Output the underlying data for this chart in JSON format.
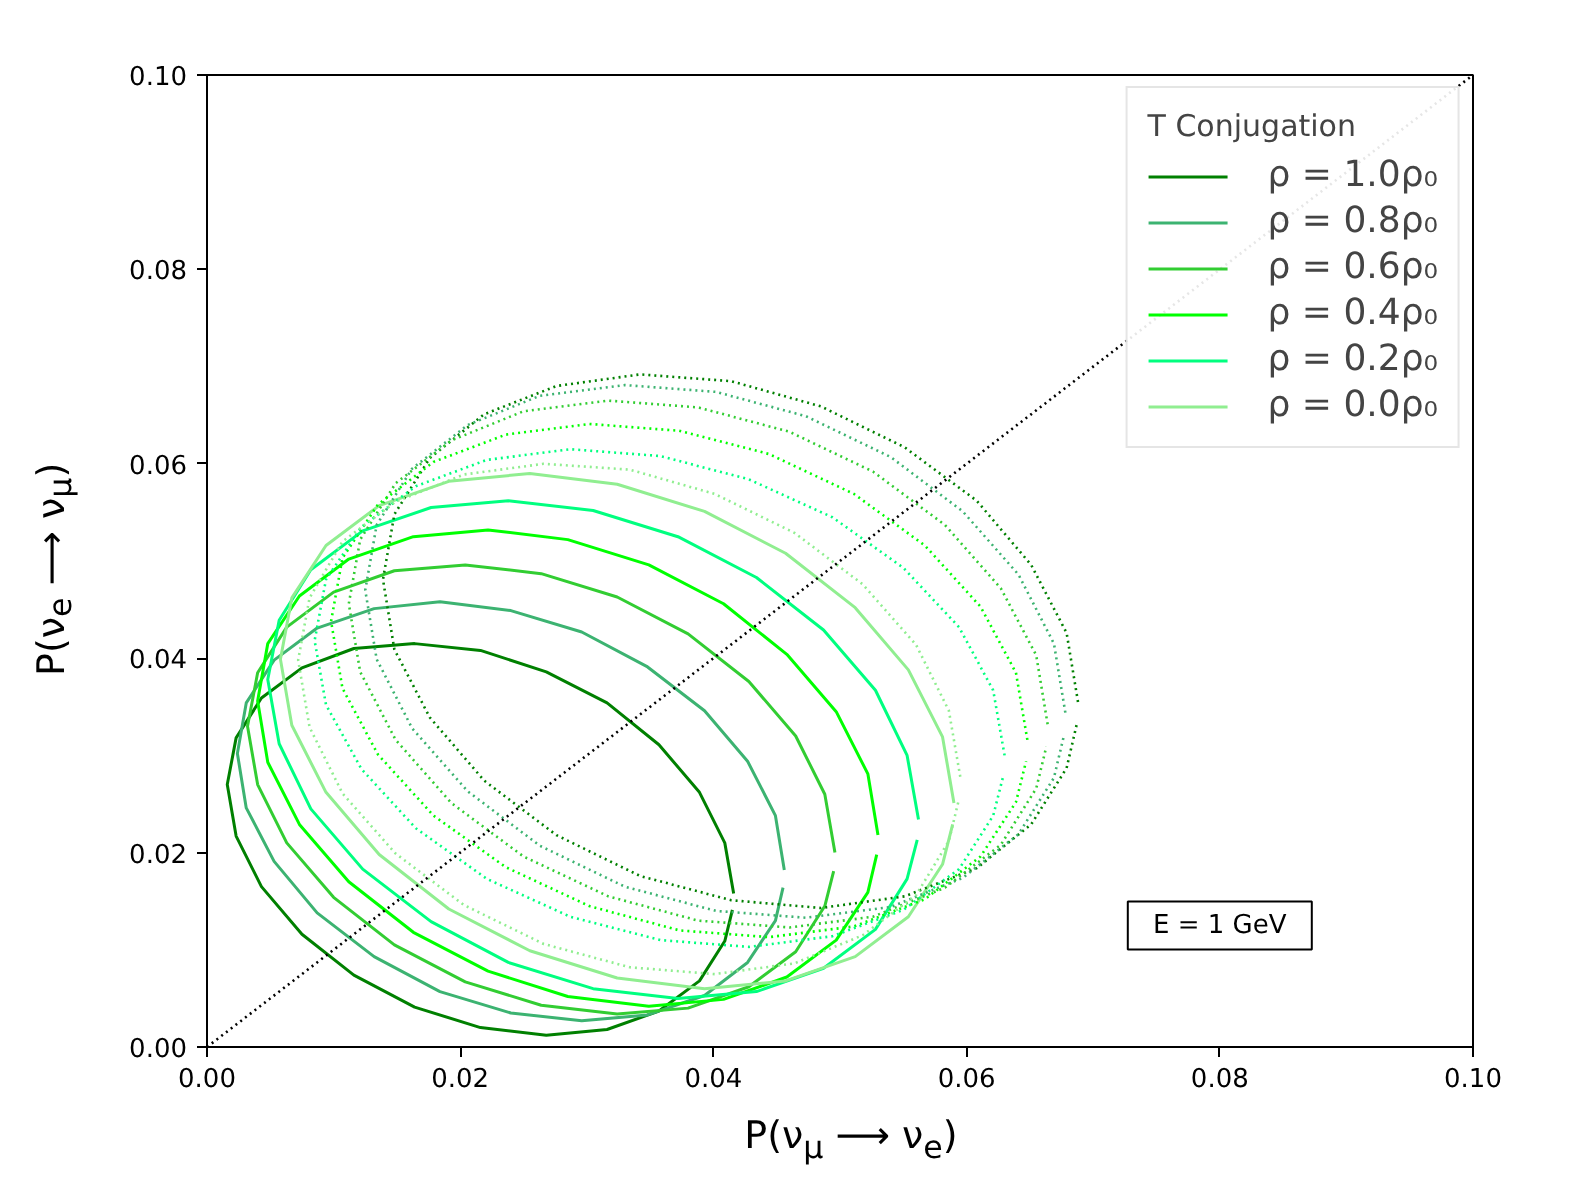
{
  "chart_data": {
    "type": "line",
    "xlabel": "P(ν$_{μ}$ ⟶ ν$_{e}$)",
    "ylabel": "P(ν$_{e}$ ⟶ ν$_{μ}$)",
    "legend_title": "T Conjugation",
    "legend": "top right",
    "grid": false,
    "marker": "none",
    "xlim": [
      0,
      0.1
    ],
    "ylim": [
      0,
      0.1
    ],
    "xticks": [
      {
        "value": 0,
        "label": "0.00"
      },
      {
        "value": 0.02,
        "label": "0.02"
      },
      {
        "value": 0.04,
        "label": "0.04"
      },
      {
        "value": 0.06,
        "label": "0.06"
      },
      {
        "value": 0.08,
        "label": "0.08"
      },
      {
        "value": 0.1,
        "label": "0.10"
      }
    ],
    "yticks": [
      {
        "value": 0,
        "label": "0.00"
      },
      {
        "value": 0.02,
        "label": "0.02"
      },
      {
        "value": 0.04,
        "label": "0.04"
      },
      {
        "value": 0.06,
        "label": "0.06"
      },
      {
        "value": 0.08,
        "label": "0.08"
      },
      {
        "value": 0.1,
        "label": "0.10"
      }
    ],
    "annotations": [
      "E = 1 GeV"
    ],
    "series": [
      {
        "name": "ρ = 1.0ρ₀",
        "color": "#008000",
        "line_style": "solid",
        "x": [
          0.0416,
          0.0409,
          0.0389,
          0.0357,
          0.0316,
          0.0268,
          0.0216,
          0.0164,
          0.0116,
          0.0075,
          0.0043,
          0.0023,
          0.0016,
          0.0023,
          0.0043,
          0.0075,
          0.0116,
          0.0164,
          0.0216,
          0.0268,
          0.0316,
          0.0357,
          0.0389,
          0.0409,
          0.0415
        ],
        "values": [
          0.0158,
          0.021,
          0.0262,
          0.0311,
          0.0354,
          0.0386,
          0.0408,
          0.0415,
          0.041,
          0.039,
          0.0359,
          0.0318,
          0.027,
          0.0217,
          0.0165,
          0.0116,
          0.0074,
          0.0041,
          0.002,
          0.0012,
          0.0018,
          0.0037,
          0.0068,
          0.0109,
          0.0141
        ]
      },
      {
        "name": "ρ = 0.8ρ₀",
        "color": "#3cb371",
        "line_style": "solid",
        "x": [
          0.0456,
          0.0449,
          0.0427,
          0.0393,
          0.0348,
          0.0296,
          0.024,
          0.0184,
          0.0132,
          0.0087,
          0.0053,
          0.0031,
          0.0024,
          0.0031,
          0.0053,
          0.0087,
          0.0132,
          0.0184,
          0.024,
          0.0296,
          0.0348,
          0.0393,
          0.0427,
          0.0449,
          0.0455
        ],
        "values": [
          0.0182,
          0.0238,
          0.0294,
          0.0346,
          0.0391,
          0.0427,
          0.0449,
          0.0458,
          0.0451,
          0.0431,
          0.0398,
          0.0354,
          0.0302,
          0.0246,
          0.0191,
          0.0138,
          0.0093,
          0.0057,
          0.0035,
          0.0027,
          0.0033,
          0.0053,
          0.0087,
          0.013,
          0.0164
        ]
      },
      {
        "name": "ρ = 0.6ρ₀",
        "color": "#32cd32",
        "line_style": "solid",
        "x": [
          0.0496,
          0.0488,
          0.0465,
          0.0428,
          0.038,
          0.0324,
          0.0264,
          0.0204,
          0.0148,
          0.01,
          0.0063,
          0.004,
          0.0032,
          0.004,
          0.0063,
          0.01,
          0.0148,
          0.0204,
          0.0264,
          0.0324,
          0.038,
          0.0428,
          0.0465,
          0.0488,
          0.0495
        ],
        "values": [
          0.02,
          0.026,
          0.032,
          0.0376,
          0.0425,
          0.0463,
          0.0487,
          0.0496,
          0.049,
          0.0468,
          0.0432,
          0.0385,
          0.033,
          0.027,
          0.021,
          0.0154,
          0.0105,
          0.0067,
          0.0043,
          0.0034,
          0.004,
          0.0062,
          0.0098,
          0.0145,
          0.0181
        ]
      },
      {
        "name": "ρ = 0.4ρ₀",
        "color": "#00ff00",
        "line_style": "solid",
        "x": [
          0.053,
          0.0522,
          0.0497,
          0.0458,
          0.0408,
          0.0349,
          0.0285,
          0.0222,
          0.0163,
          0.0112,
          0.0073,
          0.0048,
          0.004,
          0.0048,
          0.0073,
          0.0112,
          0.0163,
          0.0222,
          0.0285,
          0.0349,
          0.0408,
          0.0458,
          0.0497,
          0.0522,
          0.0529
        ],
        "values": [
          0.0218,
          0.0281,
          0.0345,
          0.0404,
          0.0456,
          0.0496,
          0.0522,
          0.0532,
          0.0525,
          0.0502,
          0.0464,
          0.0415,
          0.0356,
          0.0293,
          0.0229,
          0.017,
          0.0118,
          0.0078,
          0.0052,
          0.0042,
          0.0049,
          0.0072,
          0.011,
          0.0159,
          0.0198
        ]
      },
      {
        "name": "ρ = 0.2ρ₀",
        "color": "#00ff7f",
        "line_style": "solid",
        "x": [
          0.0562,
          0.0553,
          0.0528,
          0.0487,
          0.0434,
          0.0372,
          0.0305,
          0.0238,
          0.0177,
          0.0123,
          0.0082,
          0.0057,
          0.0048,
          0.0057,
          0.0082,
          0.0123,
          0.0177,
          0.0238,
          0.0305,
          0.0372,
          0.0434,
          0.0487,
          0.0528,
          0.0553,
          0.0561
        ],
        "values": [
          0.0234,
          0.03,
          0.0367,
          0.0429,
          0.0483,
          0.0525,
          0.0552,
          0.0562,
          0.0555,
          0.0531,
          0.0491,
          0.0439,
          0.0378,
          0.0312,
          0.0245,
          0.0183,
          0.0129,
          0.0087,
          0.006,
          0.005,
          0.0057,
          0.0081,
          0.0121,
          0.0173,
          0.0213
        ]
      },
      {
        "name": "ρ = 0.0ρ₀",
        "color": "#90ee90",
        "line_style": "solid",
        "x": [
          0.059,
          0.0581,
          0.0554,
          0.0512,
          0.0457,
          0.0393,
          0.0324,
          0.0255,
          0.0191,
          0.0136,
          0.0094,
          0.0067,
          0.0058,
          0.0067,
          0.0094,
          0.0136,
          0.0191,
          0.0255,
          0.0324,
          0.0393,
          0.0457,
          0.0512,
          0.0554,
          0.0581,
          0.0589
        ],
        "values": [
          0.0251,
          0.0319,
          0.0388,
          0.0452,
          0.0508,
          0.0551,
          0.0579,
          0.059,
          0.0582,
          0.0557,
          0.0516,
          0.0462,
          0.0399,
          0.0331,
          0.0262,
          0.0198,
          0.0142,
          0.0099,
          0.0071,
          0.006,
          0.0068,
          0.0093,
          0.0134,
          0.0188,
          0.0229
        ]
      },
      {
        "color": "#008000",
        "line_style": "dotted",
        "x": [
          0.0688,
          0.0679,
          0.0651,
          0.0608,
          0.0551,
          0.0485,
          0.0414,
          0.0342,
          0.0276,
          0.0219,
          0.0176,
          0.0148,
          0.0139,
          0.0148,
          0.0176,
          0.0219,
          0.0276,
          0.0342,
          0.0414,
          0.0485,
          0.0551,
          0.0608,
          0.0651,
          0.0679,
          0.0687
        ],
        "values": [
          0.0355,
          0.0426,
          0.0496,
          0.0562,
          0.0617,
          0.0659,
          0.0685,
          0.0692,
          0.068,
          0.0651,
          0.0606,
          0.0548,
          0.0481,
          0.0409,
          0.0339,
          0.0274,
          0.0218,
          0.0176,
          0.0151,
          0.0143,
          0.0155,
          0.0184,
          0.0229,
          0.0287,
          0.0332
        ]
      },
      {
        "color": "#3cb371",
        "line_style": "dotted",
        "x": [
          0.0678,
          0.0669,
          0.0641,
          0.0597,
          0.054,
          0.0473,
          0.0402,
          0.033,
          0.0263,
          0.0206,
          0.0162,
          0.0134,
          0.0125,
          0.0134,
          0.0162,
          0.0206,
          0.0263,
          0.033,
          0.0402,
          0.0473,
          0.054,
          0.0597,
          0.0641,
          0.0669,
          0.0677
        ],
        "values": [
          0.0344,
          0.0415,
          0.0486,
          0.0551,
          0.0607,
          0.0649,
          0.0674,
          0.0681,
          0.067,
          0.064,
          0.0595,
          0.0537,
          0.047,
          0.0399,
          0.0328,
          0.0263,
          0.0207,
          0.0165,
          0.014,
          0.0133,
          0.0144,
          0.0174,
          0.0219,
          0.0277,
          0.0321
        ]
      },
      {
        "color": "#32cd32",
        "line_style": "dotted",
        "x": [
          0.0664,
          0.0655,
          0.0627,
          0.0583,
          0.0526,
          0.046,
          0.0388,
          0.0317,
          0.025,
          0.0193,
          0.0149,
          0.0121,
          0.0112,
          0.0121,
          0.0149,
          0.0193,
          0.025,
          0.0317,
          0.0388,
          0.046,
          0.0526,
          0.0583,
          0.0627,
          0.0655,
          0.0663
        ],
        "values": [
          0.0332,
          0.0403,
          0.0472,
          0.0537,
          0.0592,
          0.0633,
          0.0658,
          0.0665,
          0.0654,
          0.0624,
          0.058,
          0.0522,
          0.0456,
          0.0386,
          0.0316,
          0.0251,
          0.0196,
          0.0155,
          0.013,
          0.0123,
          0.0134,
          0.0164,
          0.0208,
          0.0266,
          0.0309
        ]
      },
      {
        "color": "#00ff00",
        "line_style": "dotted",
        "x": [
          0.0648,
          0.0639,
          0.0611,
          0.0567,
          0.0511,
          0.0444,
          0.0373,
          0.0302,
          0.0236,
          0.0179,
          0.0135,
          0.0107,
          0.0098,
          0.0107,
          0.0135,
          0.0179,
          0.0236,
          0.0302,
          0.0373,
          0.0444,
          0.0511,
          0.0567,
          0.0611,
          0.0639,
          0.0647
        ],
        "values": [
          0.0316,
          0.0385,
          0.0453,
          0.0516,
          0.0569,
          0.061,
          0.0634,
          0.0641,
          0.063,
          0.0602,
          0.0558,
          0.0503,
          0.0438,
          0.0369,
          0.0301,
          0.0238,
          0.0185,
          0.0145,
          0.012,
          0.0113,
          0.0124,
          0.0152,
          0.0196,
          0.0252,
          0.0294
        ]
      },
      {
        "color": "#00ff7f",
        "line_style": "dotted",
        "x": [
          0.063,
          0.0621,
          0.0594,
          0.055,
          0.0494,
          0.0428,
          0.0358,
          0.0287,
          0.0221,
          0.0165,
          0.0122,
          0.0094,
          0.0085,
          0.0094,
          0.0122,
          0.0165,
          0.0221,
          0.0287,
          0.0358,
          0.0428,
          0.0494,
          0.055,
          0.0594,
          0.0621,
          0.0629
        ],
        "values": [
          0.03,
          0.0367,
          0.0432,
          0.0493,
          0.0545,
          0.0584,
          0.0608,
          0.0615,
          0.0604,
          0.0577,
          0.0535,
          0.0481,
          0.0418,
          0.0352,
          0.0286,
          0.0225,
          0.0173,
          0.0134,
          0.011,
          0.0103,
          0.0114,
          0.0141,
          0.0183,
          0.0238,
          0.0279
        ]
      },
      {
        "color": "#90ee90",
        "line_style": "dotted",
        "x": [
          0.0595,
          0.0586,
          0.056,
          0.0518,
          0.0464,
          0.0401,
          0.0334,
          0.0266,
          0.0203,
          0.0149,
          0.0107,
          0.0081,
          0.0072,
          0.0081,
          0.0107,
          0.0149,
          0.0203,
          0.0266,
          0.0334,
          0.0401,
          0.0464,
          0.0518,
          0.056,
          0.0586,
          0.0594
        ],
        "values": [
          0.0278,
          0.0346,
          0.0414,
          0.0476,
          0.0529,
          0.0569,
          0.0594,
          0.06,
          0.0589,
          0.0561,
          0.052,
          0.0462,
          0.0398,
          0.0329,
          0.0261,
          0.0199,
          0.0146,
          0.0106,
          0.0082,
          0.0075,
          0.0086,
          0.0115,
          0.0156,
          0.0212,
          0.0255
        ]
      },
      {
        "color": "#000000",
        "line_style": "dotted",
        "x": [
          0,
          0.1
        ],
        "values": [
          0,
          0.1
        ]
      }
    ]
  }
}
